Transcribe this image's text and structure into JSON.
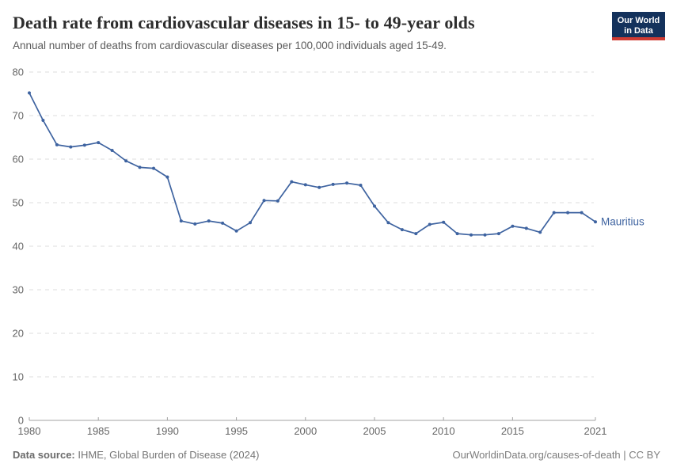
{
  "header": {
    "title": "Death rate from cardiovascular diseases in 15- to 49-year olds",
    "subtitle": "Annual number of deaths from cardiovascular diseases per 100,000 individuals aged 15-49.",
    "logo": {
      "line1": "Our World",
      "line2": "in Data"
    }
  },
  "footer": {
    "source_label": "Data source:",
    "source_value": " IHME, Global Burden of Disease (2024)",
    "rights": "OurWorldinData.org/causes-of-death | CC BY"
  },
  "colors": {
    "line": "#3e63a0",
    "series_label": "#3e63a0",
    "grid": "#dddddd",
    "axis": "#a3a3a3",
    "tick_text": "#666666",
    "logo_bg": "#14325c",
    "logo_bar": "#cf3b33"
  },
  "chart_data": {
    "type": "line",
    "title": "Death rate from cardiovascular diseases in 15- to 49-year olds",
    "subtitle": "Annual number of deaths from cardiovascular diseases per 100,000 individuals aged 15-49.",
    "xlabel": "",
    "ylabel": "",
    "xlim": [
      1980,
      2021
    ],
    "ylim": [
      0,
      80
    ],
    "x_ticks": [
      1980,
      1985,
      1990,
      1995,
      2000,
      2005,
      2010,
      2015,
      2021
    ],
    "y_ticks": [
      0,
      10,
      20,
      30,
      40,
      50,
      60,
      70,
      80
    ],
    "grid": "horizontal-dashed",
    "legend": "end-of-line-label",
    "x": [
      1980,
      1981,
      1982,
      1983,
      1984,
      1985,
      1986,
      1987,
      1988,
      1989,
      1990,
      1991,
      1992,
      1993,
      1994,
      1995,
      1996,
      1997,
      1998,
      1999,
      2000,
      2001,
      2002,
      2003,
      2004,
      2005,
      2006,
      2007,
      2008,
      2009,
      2010,
      2011,
      2012,
      2013,
      2014,
      2015,
      2016,
      2017,
      2018,
      2019,
      2020,
      2021
    ],
    "series": [
      {
        "name": "Mauritius",
        "values": [
          75.2,
          68.9,
          63.3,
          62.8,
          63.2,
          63.8,
          62.0,
          59.6,
          58.1,
          57.9,
          55.9,
          45.8,
          45.1,
          45.8,
          45.3,
          43.5,
          45.4,
          50.5,
          50.4,
          54.8,
          54.1,
          53.5,
          54.2,
          54.5,
          54.0,
          49.2,
          45.4,
          43.8,
          42.9,
          45.0,
          45.5,
          42.9,
          42.6,
          42.6,
          42.9,
          44.6,
          44.1,
          43.2,
          47.7,
          47.7,
          47.7,
          45.6
        ]
      }
    ]
  }
}
